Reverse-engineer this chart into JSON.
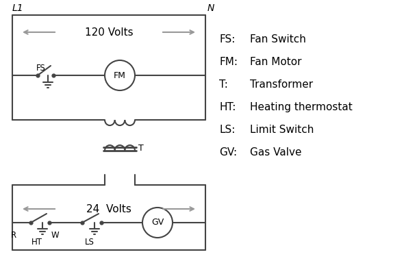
{
  "line_color": "#444444",
  "arrow_color": "#999999",
  "text_color": "#000000",
  "bg_color": "#ffffff",
  "legend_items": [
    [
      "FS:",
      "Fan Switch"
    ],
    [
      "FM:",
      "Fan Motor"
    ],
    [
      "T:",
      "Transformer"
    ],
    [
      "HT:",
      "Heating thermostat"
    ],
    [
      "LS:",
      "Limit Switch"
    ],
    [
      "GV:",
      "Gas Valve"
    ]
  ],
  "L1_label": "L1",
  "N_label": "N",
  "volts120": "120 Volts",
  "volts24": "24  Volts",
  "T_label": "T",
  "R_label": "R",
  "W_label": "W",
  "HT_label": "HT",
  "LS_label": "LS",
  "FS_label": "FS",
  "FM_label": "FM",
  "GV_label": "GV"
}
